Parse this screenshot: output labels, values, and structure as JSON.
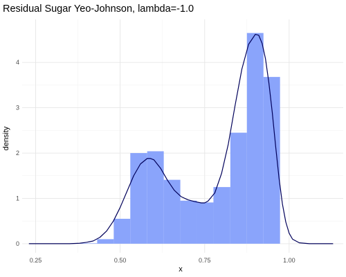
{
  "chart_data": {
    "type": "bar",
    "title": "Residual Sugar Yeo-Johnson, lambda=-1.0",
    "xlabel": "x",
    "ylabel": "density",
    "xlim": [
      0.21,
      1.16
    ],
    "ylim": [
      -0.2,
      4.95
    ],
    "x_ticks": [
      0.25,
      0.5,
      0.75,
      1.0
    ],
    "x_tick_labels": [
      "0.25",
      "0.50",
      "0.75",
      "1.00"
    ],
    "y_ticks": [
      0,
      1,
      2,
      3,
      4
    ],
    "y_tick_labels": [
      "0",
      "1",
      "2",
      "3",
      "4"
    ],
    "grid": true,
    "histogram": {
      "color": "#8aa4fb",
      "bins": [
        {
          "start": 0.383,
          "end": 0.432,
          "density": 0.01
        },
        {
          "start": 0.432,
          "end": 0.481,
          "density": 0.1
        },
        {
          "start": 0.481,
          "end": 0.53,
          "density": 0.55
        },
        {
          "start": 0.53,
          "end": 0.58,
          "density": 2.0
        },
        {
          "start": 0.58,
          "end": 0.629,
          "density": 2.04
        },
        {
          "start": 0.629,
          "end": 0.678,
          "density": 1.41
        },
        {
          "start": 0.678,
          "end": 0.727,
          "density": 0.95
        },
        {
          "start": 0.727,
          "end": 0.776,
          "density": 0.91
        },
        {
          "start": 0.776,
          "end": 0.826,
          "density": 1.25
        },
        {
          "start": 0.826,
          "end": 0.875,
          "density": 2.45
        },
        {
          "start": 0.875,
          "end": 0.924,
          "density": 4.65
        },
        {
          "start": 0.924,
          "end": 0.973,
          "density": 3.68
        }
      ]
    },
    "density_curve": {
      "color": "#00005a",
      "x": [
        0.23,
        0.3,
        0.35,
        0.38,
        0.4,
        0.42,
        0.44,
        0.46,
        0.48,
        0.5,
        0.52,
        0.54,
        0.56,
        0.58,
        0.59,
        0.6,
        0.62,
        0.64,
        0.66,
        0.68,
        0.7,
        0.72,
        0.74,
        0.75,
        0.76,
        0.78,
        0.8,
        0.82,
        0.84,
        0.86,
        0.88,
        0.9,
        0.91,
        0.92,
        0.93,
        0.94,
        0.95,
        0.96,
        0.97,
        0.98,
        0.99,
        1.0,
        1.01,
        1.03,
        1.06,
        1.13
      ],
      "y": [
        0.0,
        0.0,
        0.0,
        0.01,
        0.03,
        0.06,
        0.14,
        0.28,
        0.5,
        0.8,
        1.15,
        1.5,
        1.76,
        1.88,
        1.88,
        1.85,
        1.66,
        1.4,
        1.18,
        1.04,
        0.97,
        0.93,
        0.9,
        0.9,
        0.94,
        1.12,
        1.55,
        2.2,
        3.05,
        3.85,
        4.4,
        4.62,
        4.6,
        4.42,
        4.08,
        3.55,
        2.9,
        2.15,
        1.45,
        0.88,
        0.48,
        0.23,
        0.1,
        0.02,
        0.0,
        0.0
      ]
    }
  }
}
